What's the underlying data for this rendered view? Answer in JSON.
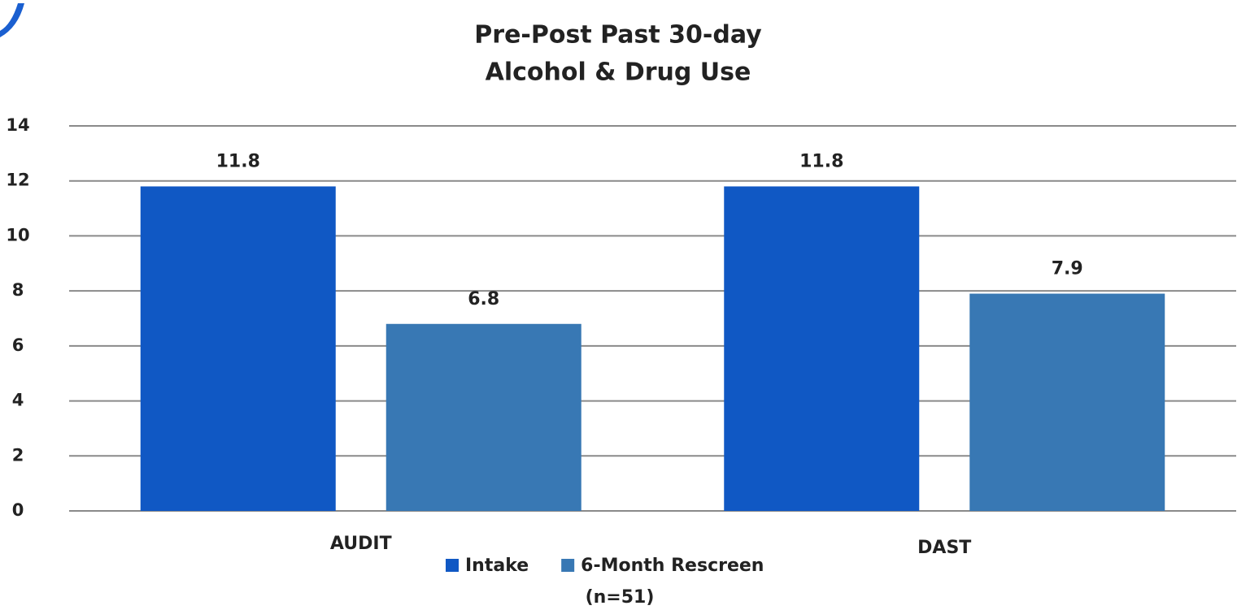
{
  "chart_data": {
    "type": "bar",
    "title": [
      "Pre-Post Past 30-day",
      "Alcohol & Drug Use"
    ],
    "categories": [
      "AUDIT",
      "DAST"
    ],
    "series": [
      {
        "name": "Intake",
        "color": "#1058c4",
        "values": [
          11.8,
          11.8
        ]
      },
      {
        "name": "6-Month Rescreen",
        "color": "#3878b4",
        "values": [
          6.8,
          7.9
        ]
      }
    ],
    "ylim": [
      0,
      14
    ],
    "yticks": [
      0,
      2,
      4,
      6,
      8,
      10,
      12,
      14
    ],
    "grid": true,
    "legend": "bottom",
    "note": "(n=51)"
  }
}
